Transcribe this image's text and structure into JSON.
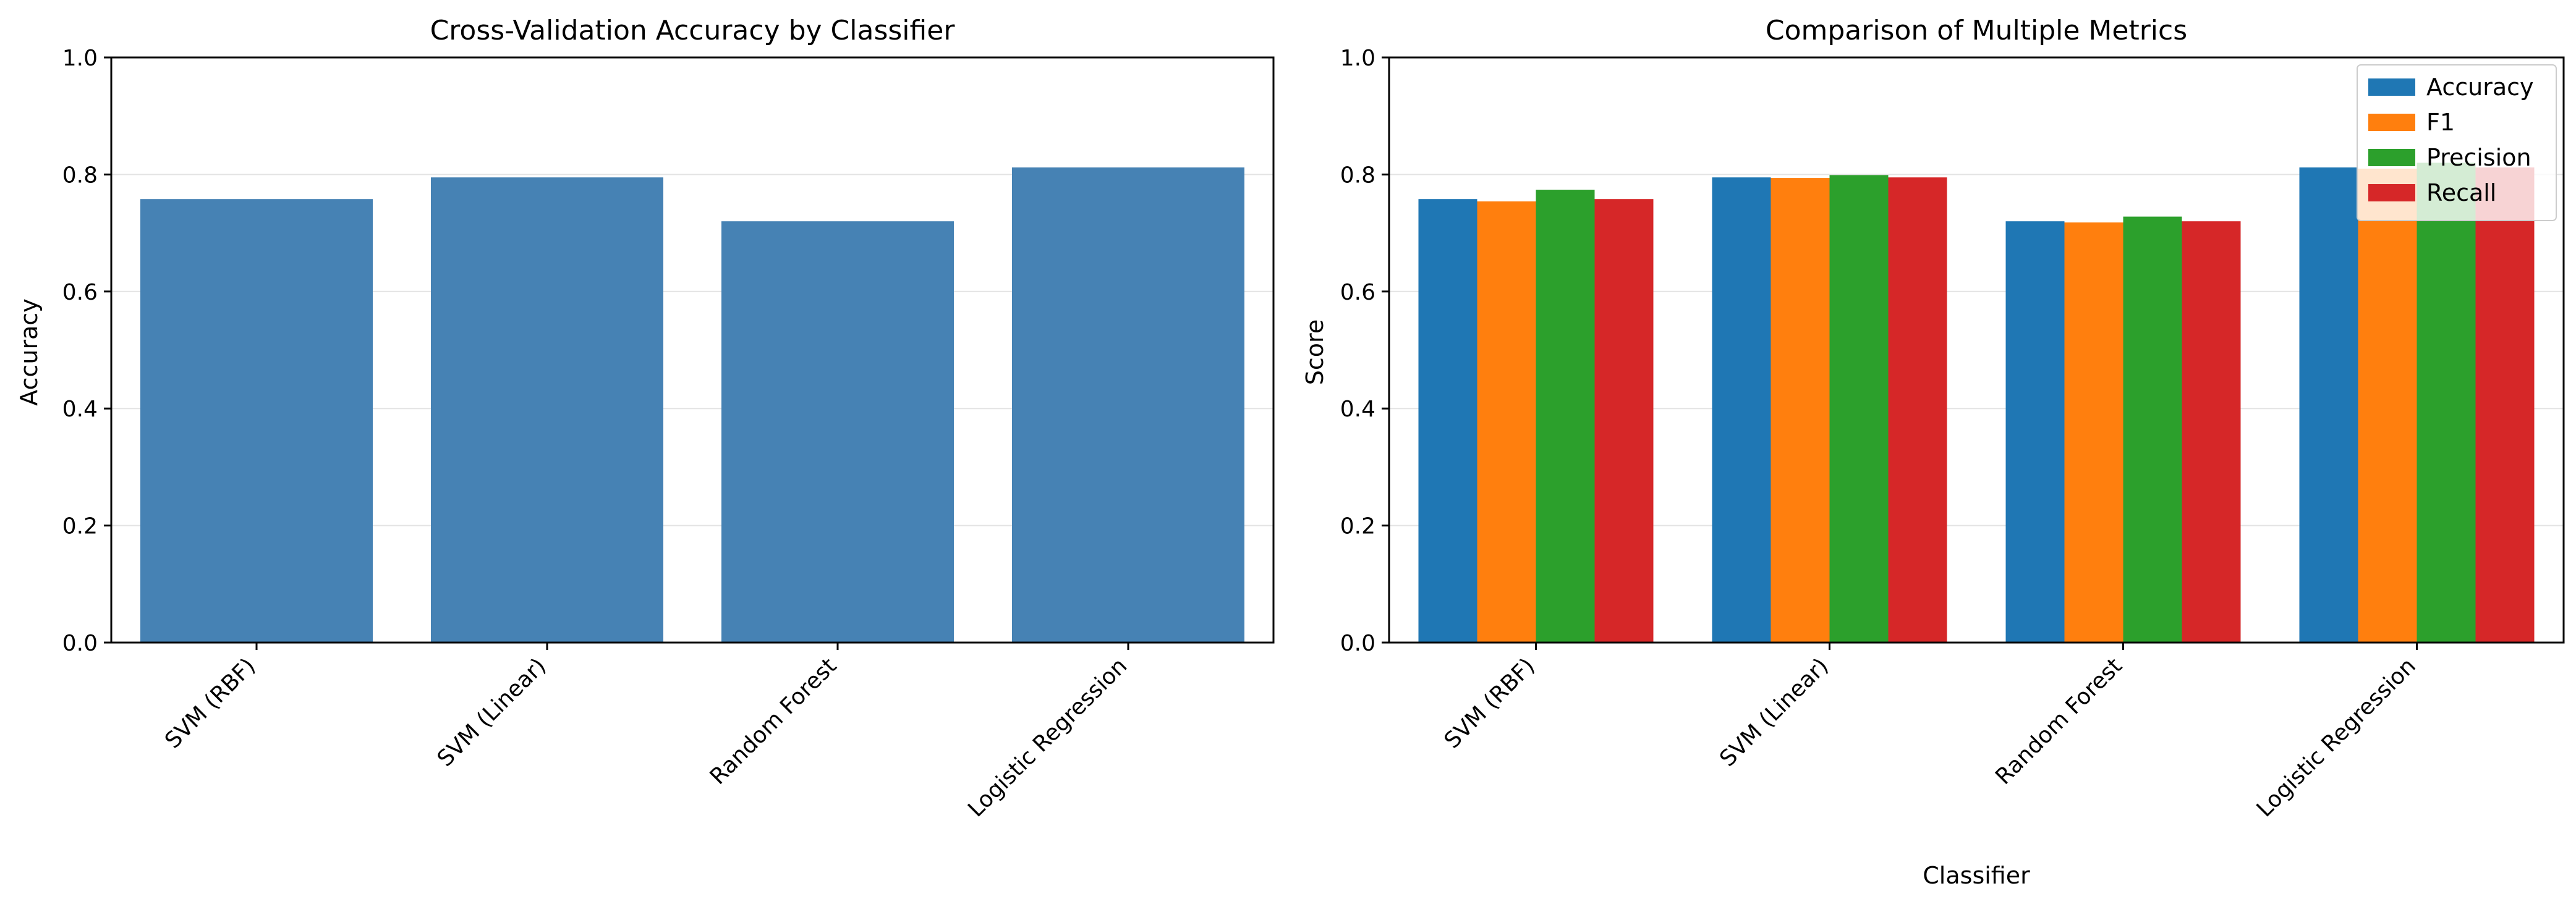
{
  "chart_data": [
    {
      "type": "bar",
      "title": "Cross-Validation Accuracy by Classifier",
      "xlabel": "",
      "ylabel": "Accuracy",
      "categories": [
        "SVM (RBF)",
        "SVM (Linear)",
        "Random Forest",
        "Logistic Regression"
      ],
      "series": [
        {
          "values": [
            0.758,
            0.795,
            0.72,
            0.812
          ],
          "color": "#4682b4"
        }
      ],
      "ylim": [
        0,
        1.0
      ],
      "yticks": [
        0.0,
        0.2,
        0.4,
        0.6,
        0.8,
        1.0
      ],
      "ytick_labels": [
        "0.0",
        "0.2",
        "0.4",
        "0.6",
        "0.8",
        "1.0"
      ],
      "grid": "y",
      "legend": "none"
    },
    {
      "type": "bar",
      "title": "Comparison of Multiple Metrics",
      "xlabel": "Classifier",
      "ylabel": "Score",
      "categories": [
        "SVM (RBF)",
        "SVM (Linear)",
        "Random Forest",
        "Logistic Regression"
      ],
      "series": [
        {
          "name": "Accuracy",
          "values": [
            0.758,
            0.795,
            0.72,
            0.812
          ],
          "color": "#1f77b4"
        },
        {
          "name": "F1",
          "values": [
            0.754,
            0.794,
            0.718,
            0.81
          ],
          "color": "#ff7f0e"
        },
        {
          "name": "Precision",
          "values": [
            0.774,
            0.799,
            0.728,
            0.82
          ],
          "color": "#2ca02c"
        },
        {
          "name": "Recall",
          "values": [
            0.758,
            0.795,
            0.72,
            0.812
          ],
          "color": "#d62728"
        }
      ],
      "ylim": [
        0,
        1.0
      ],
      "yticks": [
        0.0,
        0.2,
        0.4,
        0.6,
        0.8,
        1.0
      ],
      "ytick_labels": [
        "0.0",
        "0.2",
        "0.4",
        "0.6",
        "0.8",
        "1.0"
      ],
      "grid": "y",
      "legend": "top-right"
    }
  ]
}
